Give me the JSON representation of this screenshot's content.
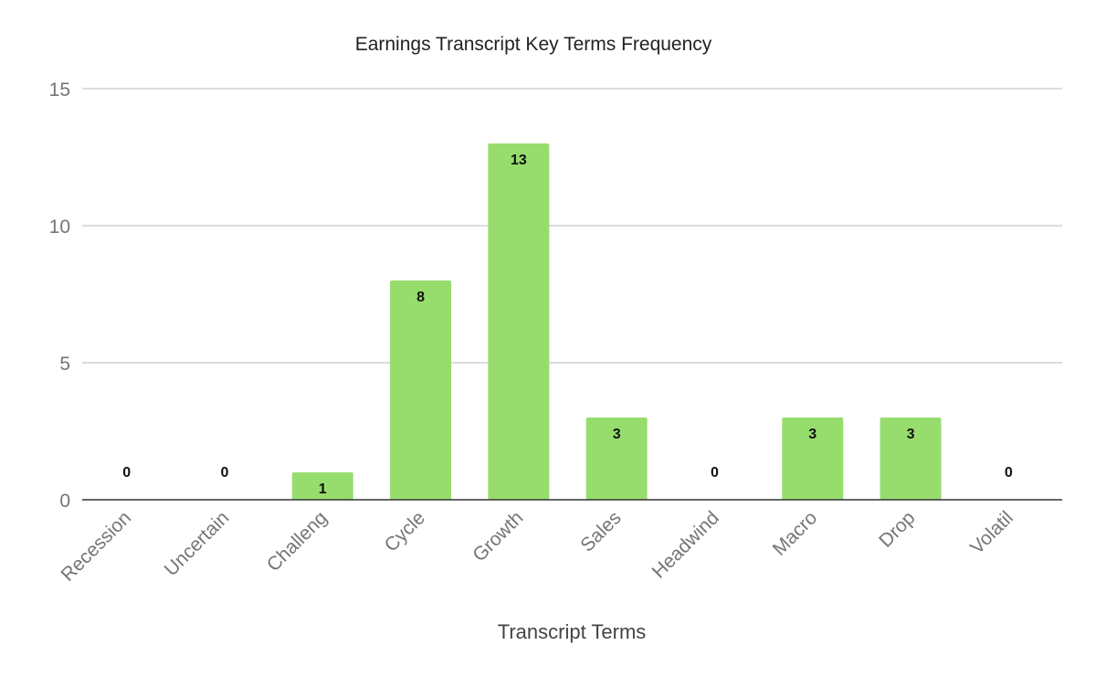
{
  "chart_data": {
    "type": "bar",
    "title": "Earnings Transcript Key Terms Frequency",
    "xlabel": "Transcript Terms",
    "ylabel": "",
    "categories": [
      "Recession",
      "Uncertain",
      "Challeng",
      "Cycle",
      "Growth",
      "Sales",
      "Headwind",
      "Macro",
      "Drop",
      "Volatil"
    ],
    "values": [
      0,
      0,
      1,
      8,
      13,
      3,
      0,
      3,
      3,
      0
    ],
    "ylim": [
      0,
      15
    ],
    "yticks": [
      "0",
      "5",
      "10",
      "15"
    ],
    "grid": true,
    "legend": "none",
    "data_labels": true,
    "colors": {
      "bar": "#97dd6d",
      "gridline": "#c6c6c6",
      "baseline": "#333333"
    }
  }
}
